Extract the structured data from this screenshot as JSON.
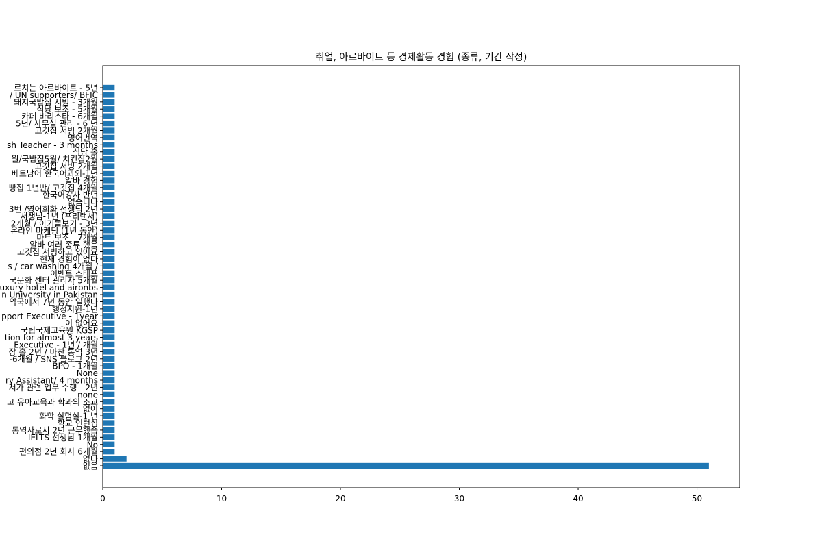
{
  "chart_data": {
    "type": "bar",
    "orientation": "horizontal",
    "title": "취업, 아르바이트 등 경제활동 경험 (종류, 기간 작성)",
    "xlabel": "",
    "ylabel": "",
    "xlim": [
      0,
      53.6
    ],
    "xticks": [
      0,
      10,
      20,
      30,
      40,
      50
    ],
    "grid": false,
    "legend": "none",
    "bar_color": "#1f77b4",
    "categories": [
      "없음",
      "없다",
      "편의점 2년 회사 6개월",
      "No",
      "IELTS 선생님-1개월",
      "통역사로서 2년 근무했습",
      "학교 인턴십",
      "화학 실험실-1 년",
      "없어",
      "고 유아교육과 학과의 조교",
      "none",
      "서가 관련 업무 수행 - 2년",
      "ry Assistant/ 4 months",
      "None",
      "BPO - 1개월",
      "-6개월 / SNS 블로그 2년",
      "장 홀 2년 / 마찬 통역 3년",
      "Executive - 1년 / 개월",
      "tion for almost 3 years",
      "국립국제교육원 KGSP",
      "이 없어요",
      "pport Executive - 1year",
      "행정지원-1년",
      "약국에서 7년 동안 일했다",
      "n University in Pakistan",
      "uxury hotel and airbnbs",
      "국문화 센터 관리자 5개월",
      "이벤트 스태프",
      "s / car washing 4개월 /",
      "현재 경험이 없다",
      "고깃집 서빙하고 있어요",
      "알바 여러 종류 했음",
      "마트 보조 - 7개월",
      "온라인 마케팅 (1년 동안)",
      "2개월 / 아기돌보기 - 3년",
      "서생님-1년 (프리랜서)",
      "3번 /영어회화 선생님 2년",
      "없습니다",
      "한국어강사 반년",
      "빵집 1년반/ 고깃집 4개월",
      "알바 경험",
      "베트남어 한국어과외-1년",
      "고깃집 서빙 2개월",
      "월/국밥집5월/ 치킨집2월",
      "식당 홀",
      "sh Teacher - 3 months",
      "영어번역",
      "고깃집 서빙 2개월",
      "5년/ 사무실 관리 - 6 년",
      "카페 바리스타 - 6개월",
      "식당 보조 - 5개월",
      "돼지국밥집 서빙 - 3개월",
      "/ UN supporters/ BFIC",
      "르치는 아르바이트 - 5년"
    ],
    "values": [
      51,
      2,
      1,
      1,
      1,
      1,
      1,
      1,
      1,
      1,
      1,
      1,
      1,
      1,
      1,
      1,
      1,
      1,
      1,
      1,
      1,
      1,
      1,
      1,
      1,
      1,
      1,
      1,
      1,
      1,
      1,
      1,
      1,
      1,
      1,
      1,
      1,
      1,
      1,
      1,
      1,
      1,
      1,
      1,
      1,
      1,
      1,
      1,
      1,
      1,
      1,
      1,
      1,
      1
    ]
  }
}
